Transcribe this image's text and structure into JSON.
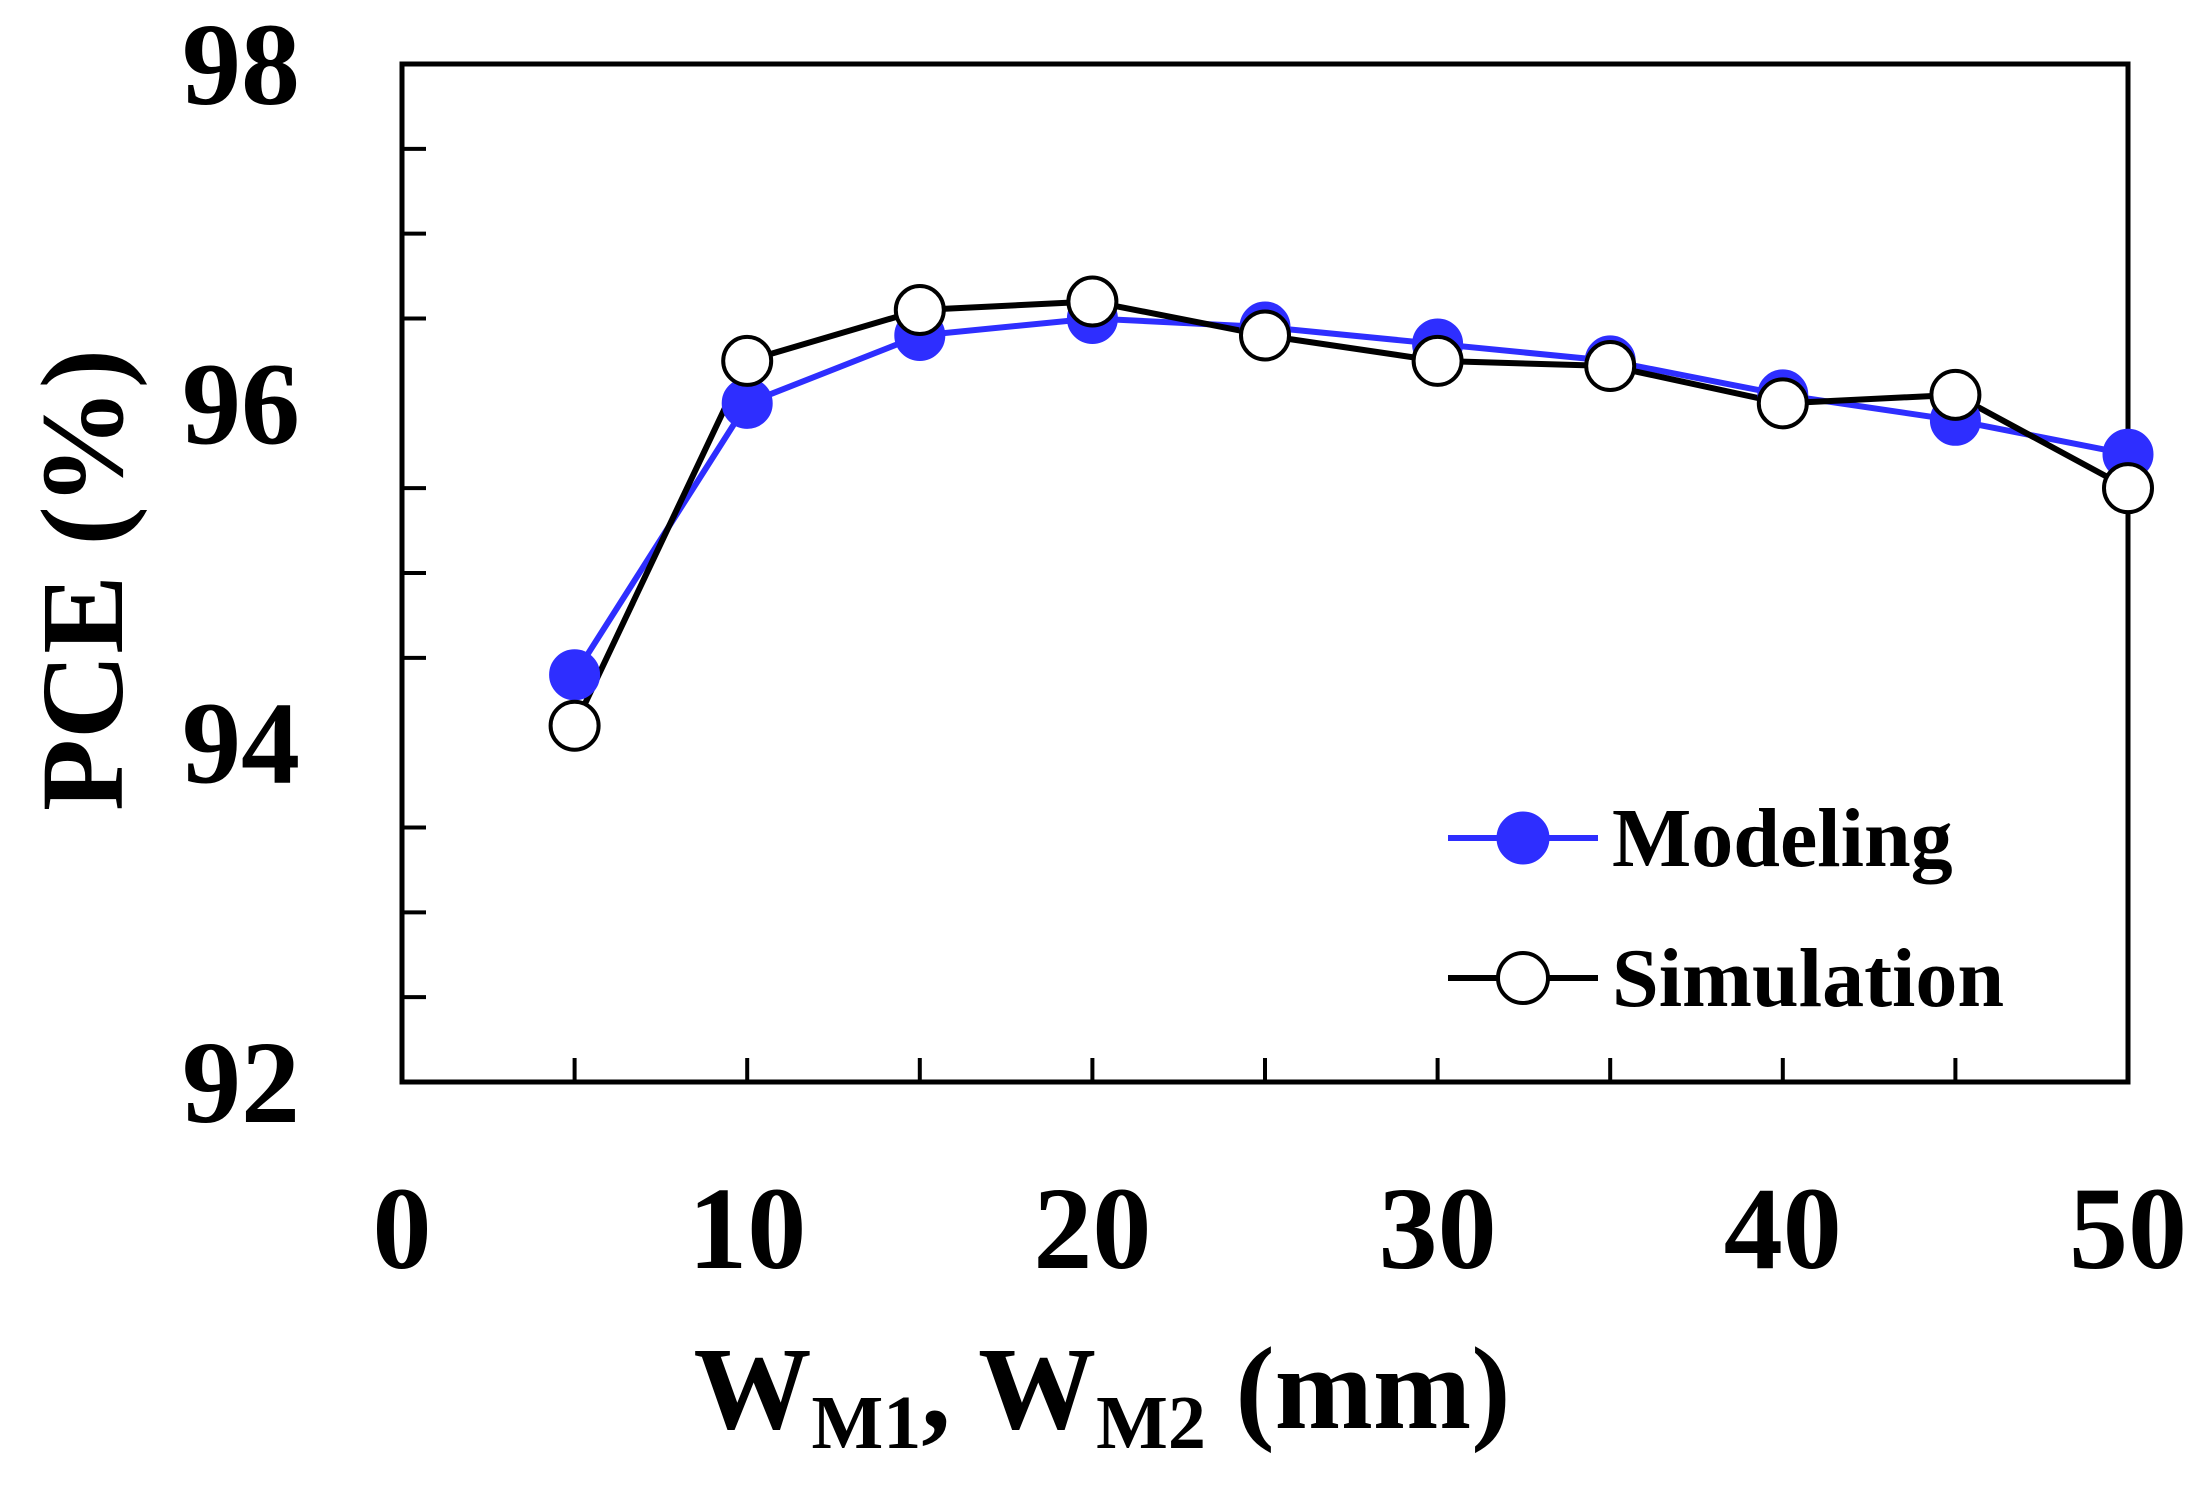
{
  "chart_data": {
    "type": "line",
    "title": "",
    "xlabel": {
      "main1": "W",
      "sub1": "M1",
      "sep": ", ",
      "main2": "W",
      "sub2": "M2",
      "unit": " (mm)"
    },
    "ylabel": "PCE (%)",
    "xlim": [
      0,
      50
    ],
    "ylim": [
      92,
      98
    ],
    "x_ticks": [
      0,
      10,
      20,
      30,
      40,
      50
    ],
    "y_ticks": [
      92,
      94,
      96,
      98
    ],
    "x_minor_ticks": [
      5,
      10,
      15,
      20,
      25,
      30,
      35,
      40,
      45
    ],
    "y_minor_ticks": [
      92.5,
      93,
      93.5,
      94.5,
      95,
      95.5,
      96.5,
      97,
      97.5
    ],
    "grid": false,
    "legend_position": "bottom-right",
    "x": [
      5,
      10,
      15,
      20,
      25,
      30,
      35,
      40,
      45,
      50
    ],
    "series": [
      {
        "name": "Modeling",
        "values": [
          94.4,
          96.0,
          96.4,
          96.5,
          96.45,
          96.35,
          96.25,
          96.05,
          95.9,
          95.7
        ],
        "color": "#2e2eff",
        "marker": "filled-circle"
      },
      {
        "name": "Simulation",
        "values": [
          94.1,
          96.25,
          96.55,
          96.6,
          96.4,
          96.25,
          96.22,
          96.0,
          96.05,
          95.5
        ],
        "color": "#000000",
        "marker": "open-circle"
      }
    ]
  }
}
